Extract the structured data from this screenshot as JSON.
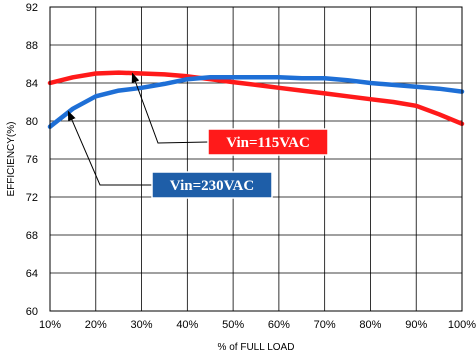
{
  "chart_data": {
    "type": "line",
    "title": "",
    "xlabel": "% of FULL LOAD",
    "ylabel": "EFFICIENCY(%)",
    "xlim": [
      10,
      100
    ],
    "ylim": [
      60,
      92
    ],
    "x_ticks": [
      10,
      20,
      30,
      40,
      50,
      60,
      70,
      80,
      90,
      100
    ],
    "x_tick_labels": [
      "10%",
      "20%",
      "30%",
      "40%",
      "50%",
      "60%",
      "70%",
      "80%",
      "90%",
      "100%"
    ],
    "y_ticks": [
      60,
      64,
      68,
      72,
      76,
      80,
      84,
      88,
      92
    ],
    "y_tick_labels": [
      "60",
      "64",
      "68",
      "72",
      "76",
      "80",
      "84",
      "88",
      "92"
    ],
    "grid": true,
    "series": [
      {
        "name": "Vin=115VAC",
        "color": "#ff1a1a",
        "points": [
          [
            10,
            84.0
          ],
          [
            15,
            84.6
          ],
          [
            20,
            85.0
          ],
          [
            25,
            85.1
          ],
          [
            30,
            85.0
          ],
          [
            35,
            84.9
          ],
          [
            40,
            84.7
          ],
          [
            45,
            84.4
          ],
          [
            50,
            84.1
          ],
          [
            55,
            83.8
          ],
          [
            60,
            83.5
          ],
          [
            65,
            83.2
          ],
          [
            70,
            82.9
          ],
          [
            75,
            82.6
          ],
          [
            80,
            82.3
          ],
          [
            85,
            82.0
          ],
          [
            90,
            81.6
          ],
          [
            95,
            80.7
          ],
          [
            100,
            79.7
          ]
        ]
      },
      {
        "name": "Vin=230VAC",
        "color": "#1e6fd6",
        "points": [
          [
            10,
            79.4
          ],
          [
            15,
            81.3
          ],
          [
            20,
            82.6
          ],
          [
            25,
            83.2
          ],
          [
            30,
            83.5
          ],
          [
            35,
            83.9
          ],
          [
            40,
            84.4
          ],
          [
            45,
            84.6
          ],
          [
            50,
            84.6
          ],
          [
            55,
            84.6
          ],
          [
            60,
            84.6
          ],
          [
            65,
            84.5
          ],
          [
            70,
            84.5
          ],
          [
            75,
            84.3
          ],
          [
            80,
            84.0
          ],
          [
            85,
            83.8
          ],
          [
            90,
            83.6
          ],
          [
            95,
            83.4
          ],
          [
            100,
            83.1
          ]
        ]
      }
    ],
    "annotations": [
      {
        "text": "Vin=115VAC",
        "series": 0,
        "bg": "#ff1a1a",
        "arrow_to": [
          28,
          85.0
        ]
      },
      {
        "text": "Vin=230VAC",
        "series": 1,
        "bg": "#1e5ea8",
        "arrow_to": [
          14,
          81.0
        ]
      }
    ]
  }
}
